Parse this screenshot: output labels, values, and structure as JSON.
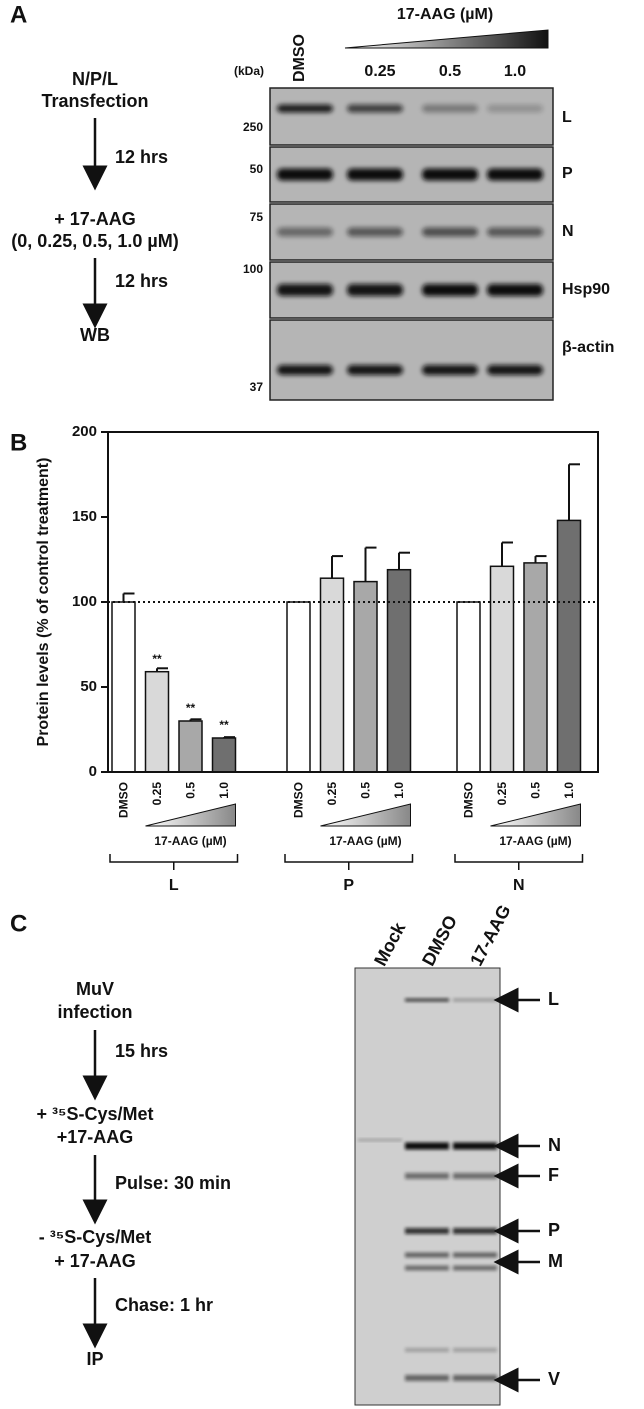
{
  "panel_a": {
    "label": "A",
    "flow": [
      "N/P/L",
      "Transfection",
      "12 hrs",
      "+ 17-AAG",
      "(0, 0.25, 0.5, 1.0 µM)",
      "12 hrs",
      "WB"
    ],
    "treatment_title": "17-AAG (µM)",
    "kda": "(kDa)",
    "lanes": [
      "DMSO",
      "0.25",
      "0.5",
      "1.0"
    ],
    "markers": [
      "250",
      "50",
      "75",
      "100",
      "37"
    ],
    "proteins": [
      "L",
      "P",
      "N",
      "Hsp90",
      "β-actin"
    ]
  },
  "chart_data": {
    "type": "bar",
    "panel_label": "B",
    "y_label": "Protein levels (% of control treatment)",
    "categories": [
      "L",
      "P",
      "N"
    ],
    "treatment_label": "17-AAG (µM)",
    "series": [
      {
        "name": "DMSO",
        "color": "#ffffff",
        "values": [
          100,
          100,
          100
        ],
        "errors": [
          5,
          null,
          null
        ],
        "significance": [
          null,
          null,
          null
        ]
      },
      {
        "name": "0.25",
        "color": "#d9d9d9",
        "values": [
          59,
          114,
          121
        ],
        "errors": [
          2,
          13,
          14
        ],
        "significance": [
          "**",
          null,
          null
        ]
      },
      {
        "name": "0.5",
        "color": "#a8a8a8",
        "values": [
          30,
          112,
          123
        ],
        "errors": [
          1,
          20,
          4
        ],
        "significance": [
          "**",
          null,
          null
        ]
      },
      {
        "name": "1.0",
        "color": "#6f6f6f",
        "values": [
          20,
          119,
          148
        ],
        "errors": [
          0.5,
          10,
          33
        ],
        "significance": [
          "**",
          null,
          null
        ]
      }
    ],
    "ylim": [
      0,
      200
    ],
    "yticks": [
      0,
      50,
      100,
      150,
      200
    ],
    "reference_line": 100
  },
  "panel_c": {
    "label": "C",
    "flow": [
      "MuV",
      "infection",
      "15 hrs",
      "+ ³⁵S-Cys/Met",
      "+17-AAG",
      "Pulse: 30 min",
      "- ³⁵S-Cys/Met",
      "+ 17-AAG",
      "Chase: 1 hr",
      "IP"
    ],
    "lanes": [
      "Mock",
      "DMSO",
      "17-AAG"
    ],
    "bands": [
      "L",
      "N",
      "F",
      "P",
      "M",
      "V"
    ]
  }
}
